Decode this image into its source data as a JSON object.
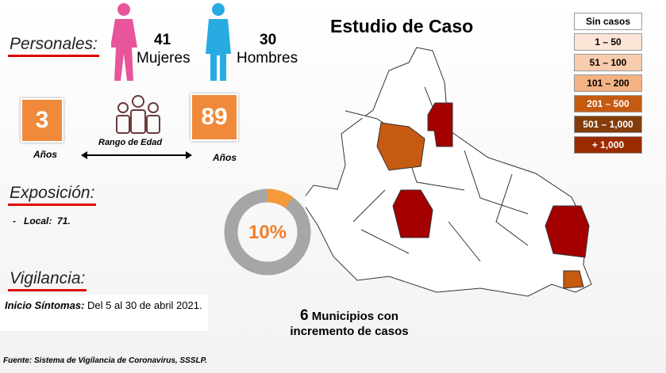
{
  "personales": {
    "title": "Personales:",
    "women": {
      "count": "41",
      "label": "Mujeres"
    },
    "men": {
      "count": "30",
      "label": "Hombres"
    }
  },
  "age": {
    "min": "3",
    "min_unit": "Años",
    "range_label": "Rango de Edad",
    "max": "89",
    "max_unit": "Años"
  },
  "exposicion": {
    "title": "Exposición:",
    "bullet": "-",
    "label": "Local:",
    "value": "71."
  },
  "vigilancia": {
    "title": "Vigilancia:",
    "label": "Inicio Síntomas:",
    "text": "Del 5 al 30 de abril 2021."
  },
  "donut": {
    "value": 10,
    "label": "10%"
  },
  "title": "Estudio de Caso",
  "legend": [
    {
      "label": "Sin casos",
      "color": "#ffffff",
      "text": "#000"
    },
    {
      "label": "1 – 50",
      "color": "#fce4d6",
      "text": "#000"
    },
    {
      "label": "51 – 100",
      "color": "#f8cbad",
      "text": "#000"
    },
    {
      "label": "101 – 200",
      "color": "#f4b183",
      "text": "#000"
    },
    {
      "label": "201 – 500",
      "color": "#c55a11",
      "text": "#fff"
    },
    {
      "label": "501 – 1,000",
      "color": "#843c0c",
      "text": "#fff"
    },
    {
      "label": "+ 1,000",
      "color": "#9c2a00",
      "text": "#fff"
    }
  ],
  "summary": {
    "count": "6",
    "text": "Municipios con incremento de casos"
  },
  "footer": "Fuente: Sistema de Vigilancia de Coronavirus, SSSLP."
}
